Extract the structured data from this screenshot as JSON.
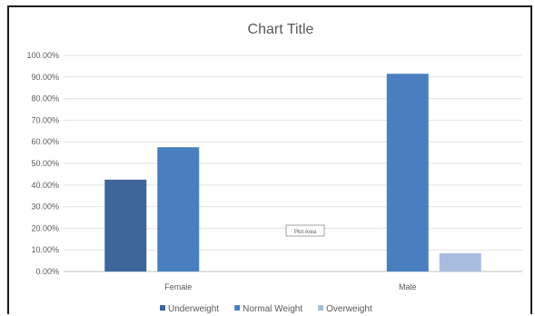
{
  "chart_data": {
    "type": "bar",
    "title": "Chart Title",
    "xlabel": "",
    "ylabel": "",
    "categories": [
      "Female",
      "Male"
    ],
    "series": [
      {
        "name": "Underweight",
        "values": [
          42.5,
          0
        ],
        "color": "#3d6699"
      },
      {
        "name": "Normal Weight",
        "values": [
          57.5,
          91.5
        ],
        "color": "#4a7fbf"
      },
      {
        "name": "Overweight",
        "values": [
          0,
          8.5
        ],
        "color": "#a8bcdf"
      }
    ],
    "ylim": [
      0,
      100
    ],
    "yticks": [
      "0.00%",
      "10.00%",
      "20.00%",
      "30.00%",
      "40.00%",
      "50.00%",
      "60.00%",
      "70.00%",
      "80.00%",
      "90.00%",
      "100.00%"
    ],
    "grid": true,
    "legend_position": "bottom"
  },
  "tooltip": {
    "label": "Plot Area"
  }
}
